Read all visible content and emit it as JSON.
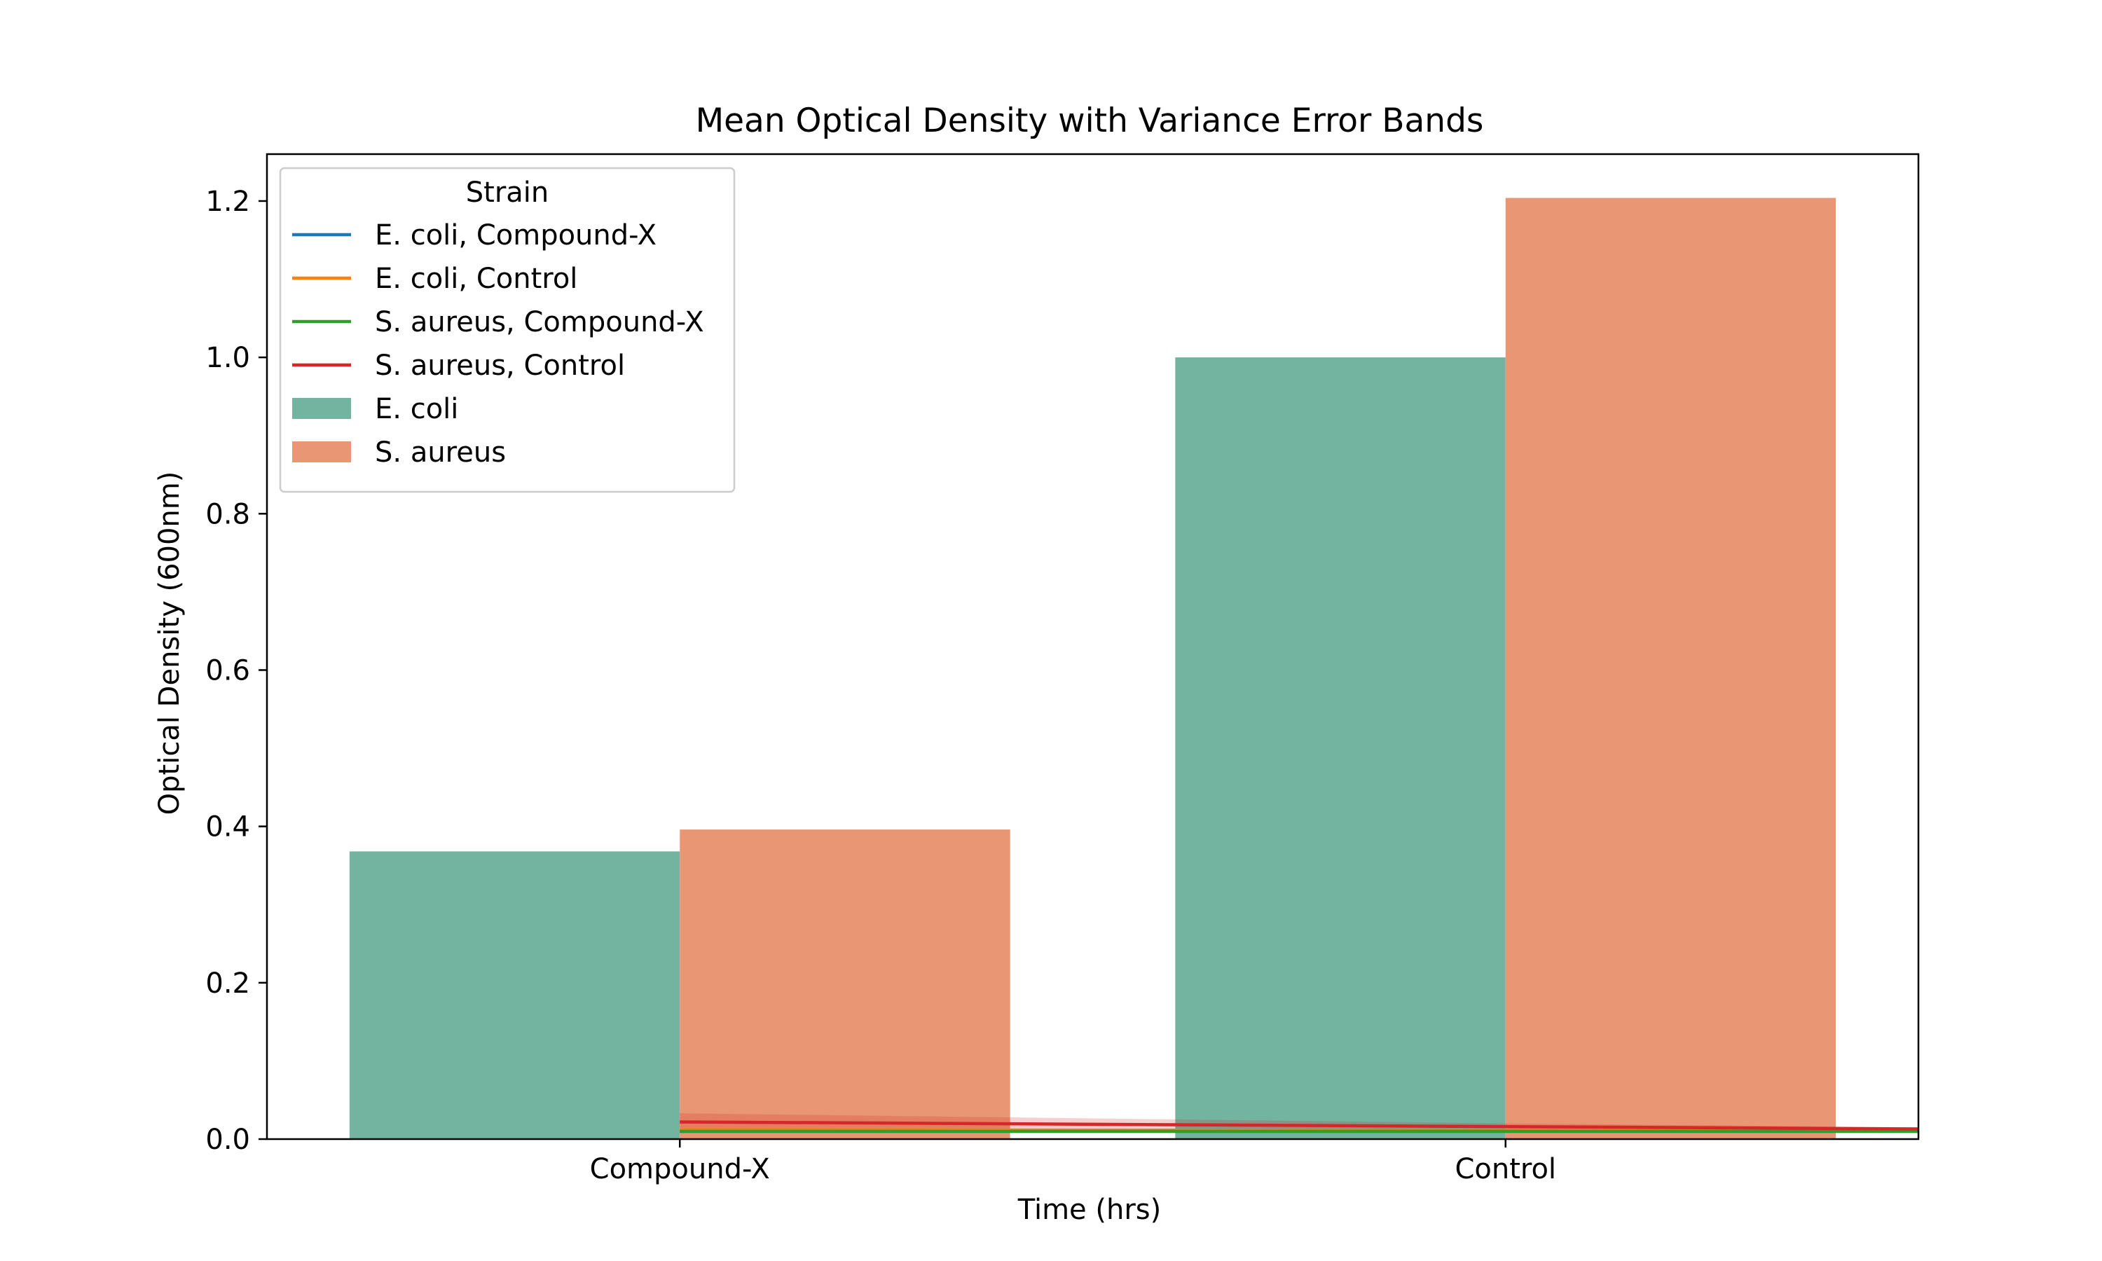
{
  "chart_data": {
    "type": "bar",
    "title": "Mean Optical Density with Variance Error Bands",
    "xlabel": "Time (hrs)",
    "ylabel": "Optical Density (600nm)",
    "ylim": [
      0,
      1.26
    ],
    "yticks": [
      "0.0",
      "0.2",
      "0.4",
      "0.6",
      "0.8",
      "1.0",
      "1.2"
    ],
    "categories": [
      "Compound-X",
      "Control"
    ],
    "grid": false,
    "legend": {
      "title": "Strain",
      "placement": "top-left",
      "entries": [
        {
          "label": "E. coli, Compound-X",
          "kind": "line",
          "color": "#1f77b4"
        },
        {
          "label": "E. coli, Control",
          "kind": "line",
          "color": "#ff7f0e"
        },
        {
          "label": "S. aureus, Compound-X",
          "kind": "line",
          "color": "#2ca02c"
        },
        {
          "label": "S. aureus, Control",
          "kind": "line",
          "color": "#d62728"
        },
        {
          "label": "E. coli",
          "kind": "patch",
          "color": "#73b4a0"
        },
        {
          "label": "S. aureus",
          "kind": "patch",
          "color": "#e89674"
        }
      ]
    },
    "series": [
      {
        "name": "E. coli",
        "kind": "bar",
        "color": "#73b4a0",
        "values": [
          0.368,
          1.0
        ]
      },
      {
        "name": "S. aureus",
        "kind": "bar",
        "color": "#e89674",
        "values": [
          0.396,
          1.204
        ]
      }
    ],
    "lines": [
      {
        "name": "E. coli, Compound-X",
        "color": "#1f77b4",
        "x": [
          0,
          1,
          1.5
        ],
        "y": [
          0.01,
          0.01,
          0.01
        ],
        "band": [
          0.002,
          0.002,
          0.002
        ]
      },
      {
        "name": "E. coli, Control",
        "color": "#ff7f0e",
        "x": [
          0,
          1,
          1.5
        ],
        "y": [
          0.012,
          0.011,
          0.01
        ],
        "band": [
          0.002,
          0.002,
          0.002
        ]
      },
      {
        "name": "S. aureus, Compound-X",
        "color": "#2ca02c",
        "x": [
          0,
          1,
          1.5
        ],
        "y": [
          0.01,
          0.01,
          0.01
        ],
        "band": [
          0.002,
          0.002,
          0.002
        ]
      },
      {
        "name": "S. aureus, Control",
        "color": "#d62728",
        "x": [
          0,
          1,
          1.5
        ],
        "y": [
          0.022,
          0.016,
          0.013
        ],
        "band": [
          0.011,
          0.004,
          0.002
        ]
      }
    ]
  }
}
